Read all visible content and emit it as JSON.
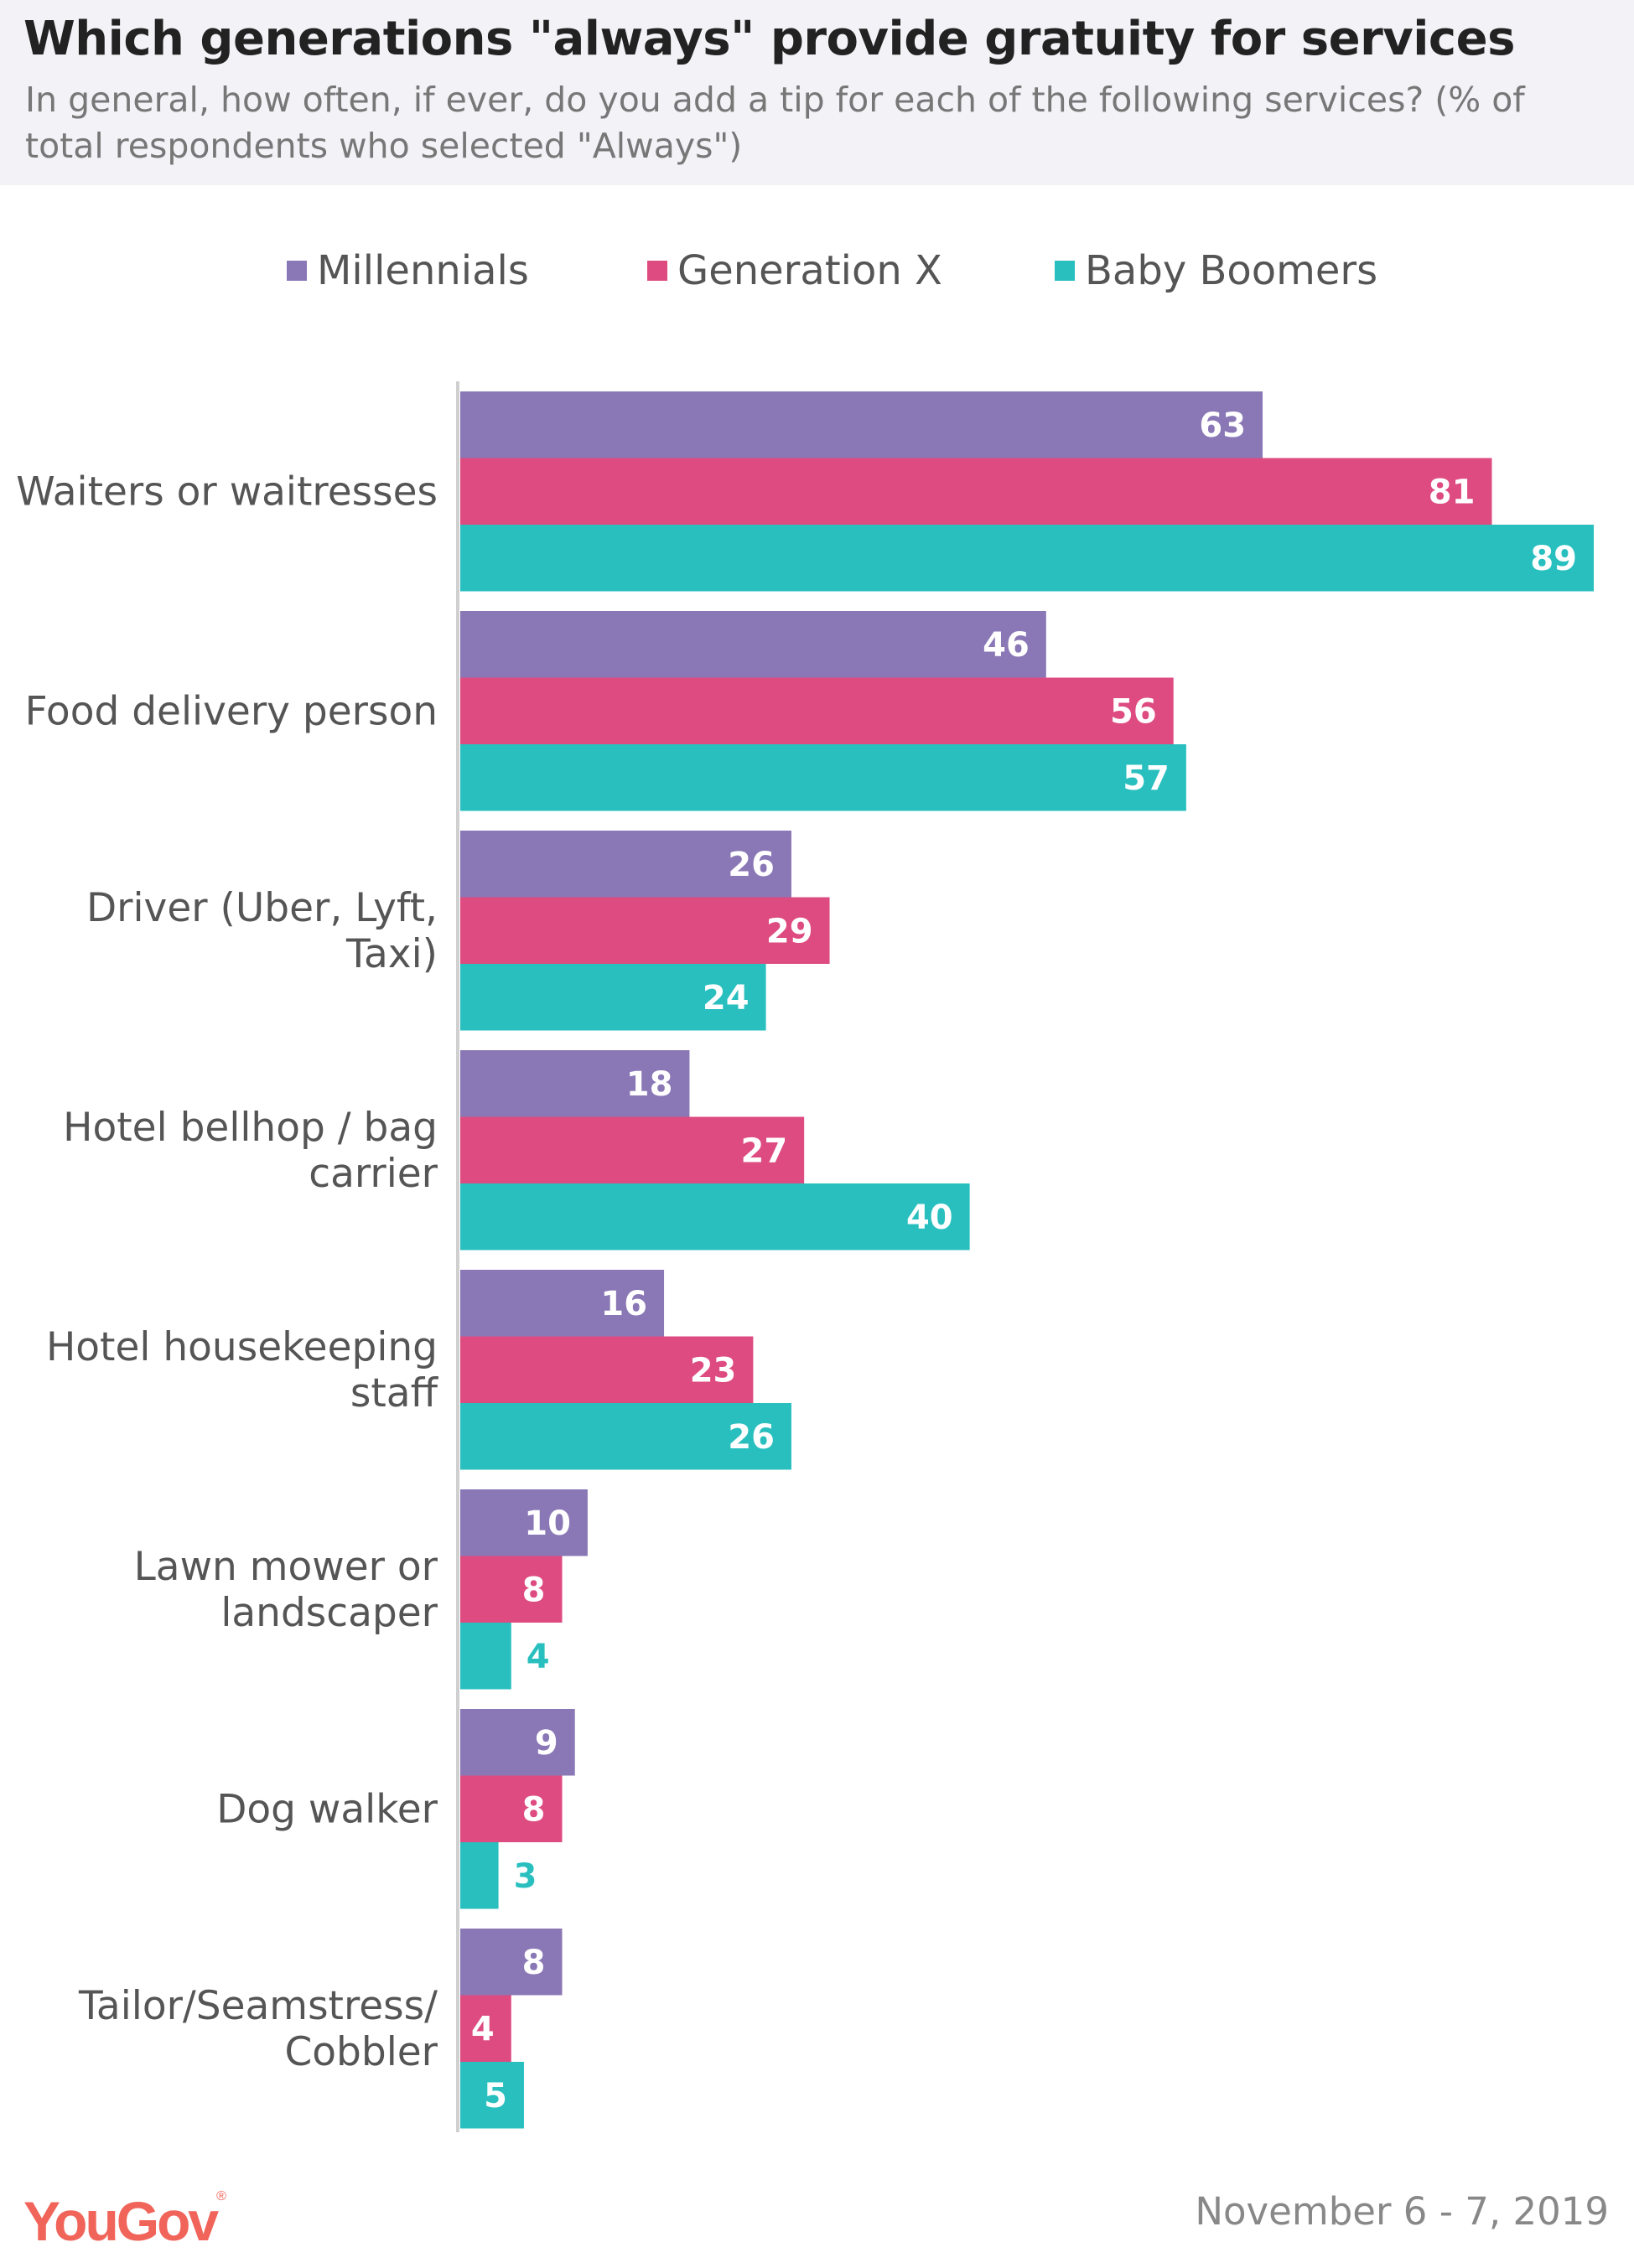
{
  "header": {
    "title": "Which generations \"always\" provide gratuity for services",
    "subtitle": "In general, how often, if ever, do you add a tip for each of the following services? (% of total respondents who selected \"Always\")"
  },
  "footer": {
    "logo": "YouGov",
    "date": "November 6 - 7, 2019"
  },
  "chart_data": {
    "type": "bar",
    "orientation": "horizontal",
    "title": "Which generations \"always\" provide gratuity for services",
    "subtitle": "In general, how often, if ever, do you add a tip for each of the following services? (% of total respondents who selected \"Always\")",
    "legend_position": "top",
    "grid": false,
    "xlim": [
      0,
      89
    ],
    "categories": [
      [
        "Waiters or waitresses"
      ],
      [
        "Food delivery person"
      ],
      [
        "Driver (Uber, Lyft,",
        "Taxi)"
      ],
      [
        "Hotel bellhop / bag",
        "carrier"
      ],
      [
        "Hotel housekeeping",
        "staff"
      ],
      [
        "Lawn mower or",
        "landscaper"
      ],
      [
        "Dog walker"
      ],
      [
        "Tailor/Seamstress/",
        "Cobbler"
      ]
    ],
    "series": [
      {
        "name": "Millennials",
        "color": "#8a78b6",
        "values": [
          63,
          46,
          26,
          18,
          16,
          10,
          9,
          8
        ]
      },
      {
        "name": "Generation X",
        "color": "#dd4b80",
        "values": [
          81,
          56,
          29,
          27,
          23,
          8,
          8,
          4
        ]
      },
      {
        "name": "Baby Boomers",
        "color": "#29bfbf",
        "values": [
          89,
          57,
          24,
          40,
          26,
          4,
          3,
          5
        ]
      }
    ]
  }
}
